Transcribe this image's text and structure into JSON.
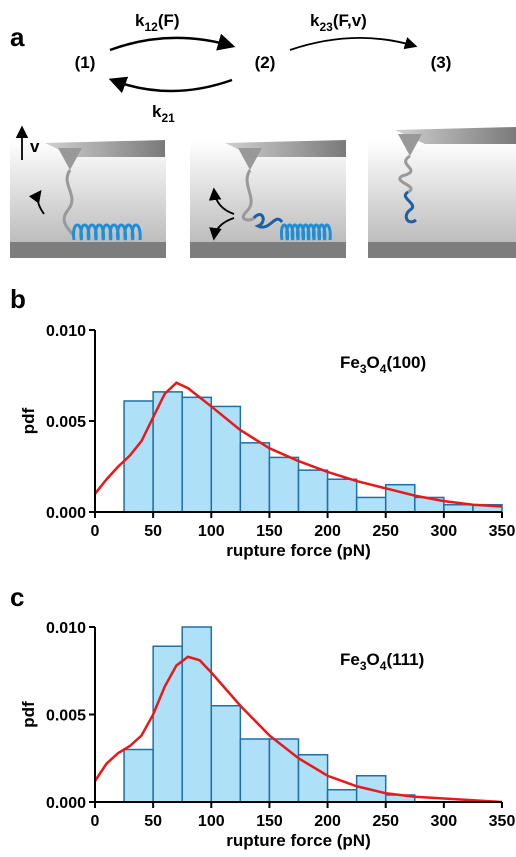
{
  "panel_labels": [
    "a",
    "b",
    "c"
  ],
  "diagram": {
    "states": [
      "(1)",
      "(2)",
      "(3)"
    ],
    "rates": [
      [
        {
          "text": "k"
        },
        {
          "text": "12",
          "sub": true
        },
        {
          "text": "(F)"
        }
      ],
      [
        {
          "text": "k"
        },
        {
          "text": "21",
          "sub": true
        }
      ],
      [
        {
          "text": "k"
        },
        {
          "text": "23",
          "sub": true
        },
        {
          "text": "(F,v)"
        }
      ]
    ],
    "velocity": "v"
  },
  "chart_data": [
    {
      "type": "histogram",
      "x_label": "rupture force (pN)",
      "y_label": "pdf",
      "annotation": [
        {
          "text": "Fe"
        },
        {
          "text": "3",
          "sub": true
        },
        {
          "text": "O"
        },
        {
          "text": "4",
          "sub": true
        },
        {
          "text": "(100)"
        }
      ],
      "bins": [
        25,
        50,
        75,
        100,
        125,
        150,
        175,
        200,
        225,
        250,
        275,
        300,
        325,
        350
      ],
      "values": [
        0.0061,
        0.0066,
        0.0063,
        0.0058,
        0.0038,
        0.003,
        0.0023,
        0.0018,
        0.0008,
        0.0015,
        0.0008,
        0.0004,
        0.0004
      ],
      "color": "#aee0f7",
      "edge_color": "#1f6fa8",
      "fit": {
        "x": [
          0,
          10,
          20,
          30,
          40,
          50,
          60,
          70,
          80,
          100,
          125,
          150,
          175,
          200,
          225,
          250,
          275,
          300,
          325,
          350
        ],
        "y": [
          0.001,
          0.0018,
          0.0025,
          0.0031,
          0.0039,
          0.0052,
          0.0065,
          0.0071,
          0.0068,
          0.0058,
          0.0045,
          0.0035,
          0.0028,
          0.0022,
          0.0017,
          0.0013,
          0.0009,
          0.0006,
          0.0004,
          0.0003
        ],
        "color": "#e8191b"
      },
      "xlim": [
        0,
        350
      ],
      "ylim": [
        0,
        0.01
      ],
      "xticks": [
        0,
        50,
        100,
        150,
        200,
        250,
        300,
        350
      ],
      "yticks": [
        {
          "value": 0,
          "label": "0.000"
        },
        {
          "value": 0.005,
          "label": "0.005"
        },
        {
          "value": 0.01,
          "label": "0.010"
        }
      ]
    },
    {
      "type": "histogram",
      "x_label": "rupture force (pN)",
      "y_label": "pdf",
      "annotation": [
        {
          "text": "Fe"
        },
        {
          "text": "3",
          "sub": true
        },
        {
          "text": "O"
        },
        {
          "text": "4",
          "sub": true
        },
        {
          "text": "(111)"
        }
      ],
      "bins": [
        25,
        50,
        75,
        100,
        125,
        150,
        175,
        200,
        225,
        250,
        275
      ],
      "values": [
        0.003,
        0.0089,
        0.01,
        0.0055,
        0.0036,
        0.0036,
        0.0027,
        0.0007,
        0.0015,
        0.0004
      ],
      "color": "#aee0f7",
      "edge_color": "#1f6fa8",
      "fit": {
        "x": [
          0,
          10,
          20,
          30,
          40,
          50,
          60,
          70,
          80,
          90,
          100,
          125,
          150,
          175,
          200,
          225,
          250,
          275,
          300,
          325,
          350
        ],
        "y": [
          0.0012,
          0.0022,
          0.0028,
          0.0032,
          0.0038,
          0.005,
          0.0066,
          0.0078,
          0.0083,
          0.0081,
          0.0074,
          0.0055,
          0.0038,
          0.0025,
          0.0015,
          0.0009,
          0.0005,
          0.0003,
          0.0002,
          0.0001,
          0
        ],
        "color": "#e8191b"
      },
      "xlim": [
        0,
        350
      ],
      "ylim": [
        0,
        0.01
      ],
      "xticks": [
        0,
        50,
        100,
        150,
        200,
        250,
        300,
        350
      ],
      "yticks": [
        {
          "value": 0,
          "label": "0.000"
        },
        {
          "value": 0.005,
          "label": "0.005"
        },
        {
          "value": 0.01,
          "label": "0.010"
        }
      ]
    }
  ]
}
